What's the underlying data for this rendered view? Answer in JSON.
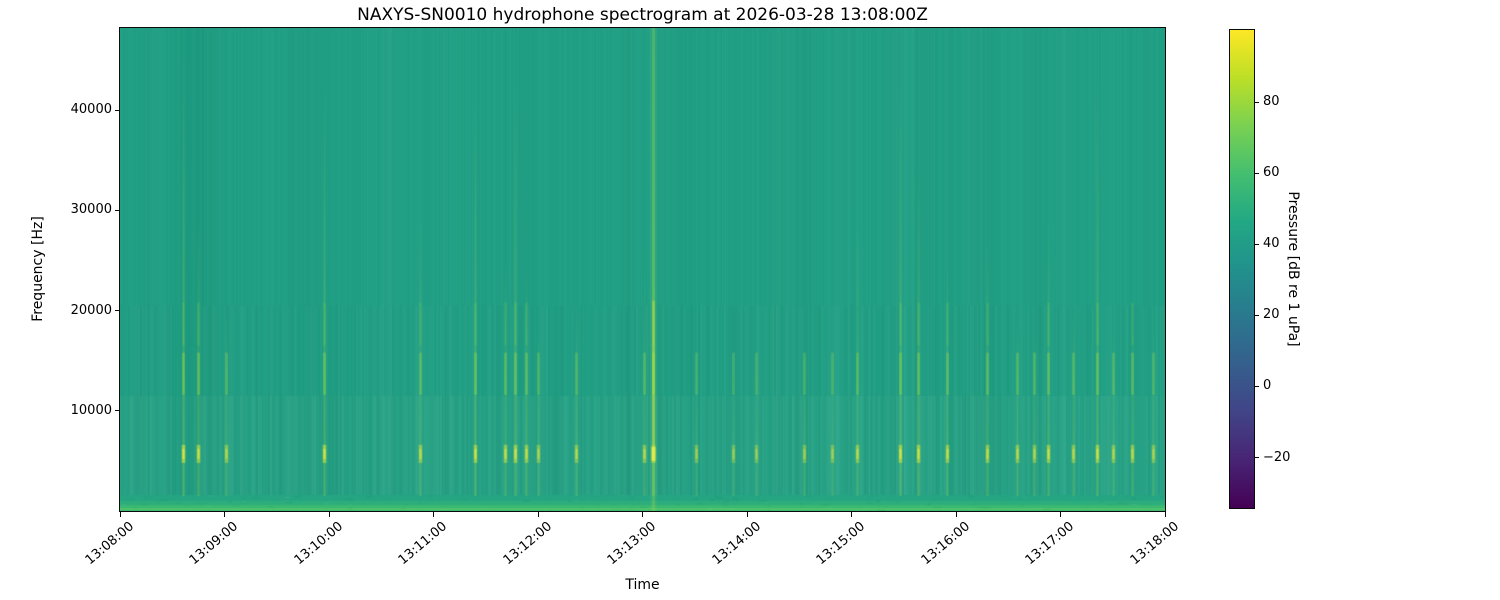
{
  "chart_data": {
    "type": "heatmap",
    "title": "NAXYS-SN0010 hydrophone spectrogram at 2026-03-28 13:08:00Z",
    "xlabel": "Time",
    "ylabel": "Frequency [Hz]",
    "colorbar_label": "Pressure [dB re 1 uPa]",
    "colormap": "viridis",
    "duration_seconds": 600,
    "freq_max_hz": 48200,
    "x_tick_labels": [
      "13:08:00",
      "13:09:00",
      "13:10:00",
      "13:11:00",
      "13:12:00",
      "13:13:00",
      "13:14:00",
      "13:15:00",
      "13:16:00",
      "13:17:00",
      "13:18:00"
    ],
    "x_tick_seconds": [
      0,
      60,
      120,
      180,
      240,
      300,
      360,
      420,
      480,
      540,
      600
    ],
    "y_tick_values": [
      10000,
      20000,
      30000,
      40000
    ],
    "y_tick_labels": [
      "10000",
      "20000",
      "30000",
      "40000"
    ],
    "colorbar_tick_values": [
      80,
      60,
      40,
      20,
      0,
      -20
    ],
    "colorbar_tick_labels": [
      "80",
      "60",
      "40",
      "20",
      "0",
      "−20"
    ],
    "colorbar_min_db": -34.2,
    "colorbar_max_db": 100.3,
    "background_level_db": 55,
    "viridis_stops": [
      "#440154",
      "#482475",
      "#414487",
      "#355f8d",
      "#2a788e",
      "#21918c",
      "#22a884",
      "#44bf70",
      "#7ad151",
      "#bddf26",
      "#fde725"
    ],
    "colors": {
      "background": "#21a085",
      "streak": "#8fd64d",
      "blob": "#cfe23d",
      "blob_core": "#eef046",
      "band_rows": [
        "#25a582",
        "#2dac7c",
        "#3ab873",
        "#4dc56b",
        "#3bb573"
      ]
    },
    "texture_band_top_hz": 11500,
    "low_band_top_hz": 2000,
    "events": [
      {
        "t": 36,
        "strength": 0.8,
        "top_hz": 46000
      },
      {
        "t": 45,
        "strength": 0.7,
        "top_hz": 30000
      },
      {
        "t": 61,
        "strength": 0.45,
        "top_hz": 20000
      },
      {
        "t": 117,
        "strength": 0.75,
        "top_hz": 43000
      },
      {
        "t": 172,
        "strength": 0.55,
        "top_hz": 30000
      },
      {
        "t": 204,
        "strength": 0.7,
        "top_hz": 43000
      },
      {
        "t": 221,
        "strength": 0.6,
        "top_hz": 25000
      },
      {
        "t": 227,
        "strength": 0.7,
        "top_hz": 43000
      },
      {
        "t": 233,
        "strength": 0.6,
        "top_hz": 25000
      },
      {
        "t": 240,
        "strength": 0.4,
        "top_hz": 18000
      },
      {
        "t": 262,
        "strength": 0.45,
        "top_hz": 20000
      },
      {
        "t": 301,
        "strength": 0.5,
        "top_hz": 25000
      },
      {
        "t": 306,
        "strength": 1.0,
        "top_hz": 48200
      },
      {
        "t": 331,
        "strength": 0.3,
        "top_hz": 15000
      },
      {
        "t": 352,
        "strength": 0.25,
        "top_hz": 14000
      },
      {
        "t": 365,
        "strength": 0.25,
        "top_hz": 14000
      },
      {
        "t": 393,
        "strength": 0.3,
        "top_hz": 16000
      },
      {
        "t": 409,
        "strength": 0.3,
        "top_hz": 16000
      },
      {
        "t": 423,
        "strength": 0.5,
        "top_hz": 30000
      },
      {
        "t": 448,
        "strength": 0.75,
        "top_hz": 43000
      },
      {
        "t": 458,
        "strength": 0.7,
        "top_hz": 35000
      },
      {
        "t": 475,
        "strength": 0.6,
        "top_hz": 25000
      },
      {
        "t": 498,
        "strength": 0.6,
        "top_hz": 28000
      },
      {
        "t": 515,
        "strength": 0.5,
        "top_hz": 20000
      },
      {
        "t": 525,
        "strength": 0.45,
        "top_hz": 18000
      },
      {
        "t": 533,
        "strength": 0.65,
        "top_hz": 30000
      },
      {
        "t": 547,
        "strength": 0.5,
        "top_hz": 20000
      },
      {
        "t": 561,
        "strength": 0.7,
        "top_hz": 43000
      },
      {
        "t": 570,
        "strength": 0.45,
        "top_hz": 18000
      },
      {
        "t": 581,
        "strength": 0.55,
        "top_hz": 22000
      },
      {
        "t": 593,
        "strength": 0.4,
        "top_hz": 18000
      }
    ]
  }
}
